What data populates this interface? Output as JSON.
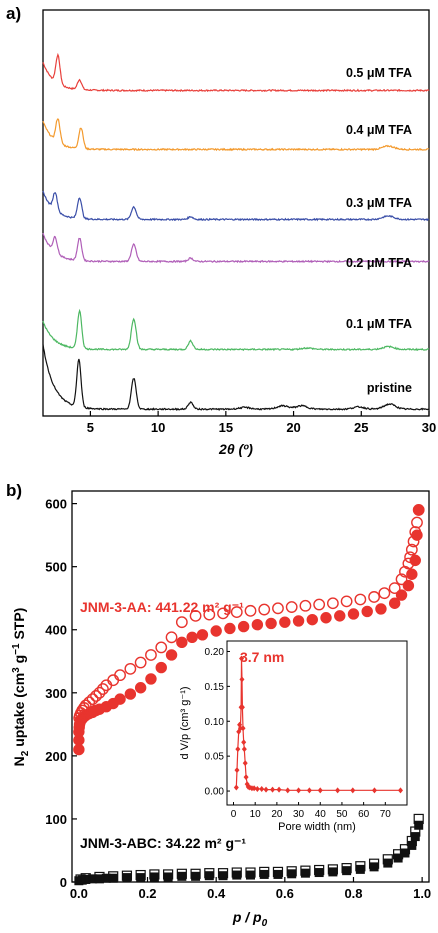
{
  "chart_data": [
    {
      "panel": "a)",
      "type": "line",
      "xlabel": "2θ (º)",
      "xlim": [
        1.5,
        30
      ],
      "x_ticks": [
        "5",
        "10",
        "15",
        "20",
        "25",
        "30"
      ],
      "series": [
        {
          "name": "0.5 μM TFA",
          "color": "#e8413c",
          "peaks": [
            [
              2.6,
              1.0
            ],
            [
              4.2,
              0.35
            ]
          ],
          "end_level": 0.02,
          "x": [],
          "y": []
        },
        {
          "name": "0.4 μM TFA",
          "color": "#f39a2e",
          "peaks": [
            [
              2.6,
              0.85
            ],
            [
              4.3,
              0.75
            ],
            [
              27.0,
              0.12
            ]
          ],
          "end_level": 0.02,
          "x": [],
          "y": []
        },
        {
          "name": "0.3 μM TFA",
          "color": "#3a4ea8",
          "peaks": [
            [
              2.4,
              0.65
            ],
            [
              4.2,
              0.75
            ],
            [
              8.2,
              0.45
            ],
            [
              12.4,
              0.1
            ],
            [
              27.0,
              0.12
            ]
          ],
          "end_level": 0.02,
          "x": [],
          "y": []
        },
        {
          "name": "0.2 μM TFA",
          "color": "#b05fb8",
          "peaks": [
            [
              2.4,
              0.55
            ],
            [
              4.2,
              0.8
            ],
            [
              8.2,
              0.6
            ],
            [
              12.4,
              0.12
            ]
          ],
          "end_level": 0.02,
          "x": [],
          "y": []
        },
        {
          "name": "0.1 μM TFA",
          "color": "#4db862",
          "peaks": [
            [
              4.2,
              1.35
            ],
            [
              8.2,
              1.1
            ],
            [
              12.4,
              0.3
            ],
            [
              21,
              0.05
            ],
            [
              27.0,
              0.1
            ]
          ],
          "end_level": 0.02,
          "x": [],
          "y": []
        },
        {
          "name": "pristine",
          "color": "#111111",
          "peaks": [
            [
              4.15,
              1.7
            ],
            [
              8.2,
              1.1
            ],
            [
              12.4,
              0.25
            ],
            [
              16.4,
              0.06
            ],
            [
              19.2,
              0.12
            ],
            [
              20.6,
              0.12
            ],
            [
              24.8,
              0.08
            ],
            [
              27.1,
              0.18
            ]
          ],
          "start_level": 2.3,
          "end_level": 0.03,
          "x": [],
          "y": []
        }
      ]
    },
    {
      "panel": "b)",
      "type": "scatter",
      "xlabel": "p / p0",
      "ylabel": "N2 uptake (cm3 g−1 STP)",
      "xlim": [
        -0.02,
        1.02
      ],
      "ylim": [
        0,
        620
      ],
      "x_ticks": [
        "0.0",
        "0.2",
        "0.4",
        "0.6",
        "0.8",
        "1.0"
      ],
      "y_ticks": [
        "0",
        "100",
        "200",
        "300",
        "400",
        "500",
        "600"
      ],
      "annotations": {
        "aa": "JNM-3-AA: 441.22 m² g⁻¹",
        "abc": "JNM-3-ABC: 34.22 m² g⁻¹"
      },
      "series": [
        {
          "name": "JNM-3-AA adsorption",
          "marker": "filled-circle",
          "color": "#e8342e",
          "x": [
            0.0,
            0.0,
            0.0,
            0.001,
            0.002,
            0.004,
            0.006,
            0.01,
            0.015,
            0.02,
            0.03,
            0.04,
            0.05,
            0.06,
            0.08,
            0.1,
            0.12,
            0.15,
            0.18,
            0.21,
            0.24,
            0.27,
            0.3,
            0.33,
            0.36,
            0.4,
            0.44,
            0.48,
            0.52,
            0.56,
            0.6,
            0.64,
            0.68,
            0.72,
            0.76,
            0.8,
            0.84,
            0.88,
            0.92,
            0.94,
            0.96,
            0.97,
            0.98,
            0.985,
            0.99
          ],
          "y": [
            210,
            225,
            238,
            245,
            250,
            254,
            257,
            259,
            262,
            264,
            267,
            269,
            272,
            274,
            278,
            283,
            290,
            298,
            308,
            322,
            340,
            360,
            380,
            388,
            392,
            398,
            402,
            405,
            408,
            410,
            412,
            414,
            416,
            419,
            422,
            425,
            429,
            433,
            442,
            455,
            470,
            488,
            510,
            550,
            590
          ]
        },
        {
          "name": "JNM-3-AA desorption",
          "marker": "open-circle",
          "color": "#e8342e",
          "x": [
            0.99,
            0.985,
            0.98,
            0.975,
            0.97,
            0.965,
            0.96,
            0.95,
            0.94,
            0.92,
            0.89,
            0.86,
            0.82,
            0.78,
            0.74,
            0.7,
            0.66,
            0.62,
            0.58,
            0.54,
            0.5,
            0.46,
            0.42,
            0.38,
            0.34,
            0.3,
            0.27,
            0.24,
            0.21,
            0.18,
            0.15,
            0.12,
            0.1,
            0.08,
            0.07,
            0.06,
            0.05,
            0.04,
            0.03,
            0.02,
            0.015,
            0.01,
            0.006,
            0.003,
            0.001
          ],
          "y": [
            590,
            570,
            555,
            540,
            527,
            515,
            505,
            492,
            480,
            466,
            458,
            452,
            448,
            445,
            442,
            440,
            438,
            436,
            434,
            432,
            430,
            428,
            426,
            424,
            422,
            412,
            388,
            372,
            360,
            348,
            338,
            328,
            320,
            312,
            306,
            300,
            295,
            290,
            285,
            280,
            276,
            272,
            268,
            264,
            260
          ]
        },
        {
          "name": "JNM-3-ABC adsorption",
          "marker": "filled-square",
          "color": "#111111",
          "x": [
            0.0,
            0.01,
            0.02,
            0.04,
            0.06,
            0.08,
            0.1,
            0.14,
            0.18,
            0.22,
            0.26,
            0.3,
            0.34,
            0.38,
            0.42,
            0.46,
            0.5,
            0.54,
            0.58,
            0.62,
            0.66,
            0.7,
            0.74,
            0.78,
            0.82,
            0.86,
            0.9,
            0.93,
            0.95,
            0.97,
            0.98,
            0.99
          ],
          "y": [
            2,
            3,
            4,
            5,
            5,
            6,
            6,
            7,
            7,
            8,
            8,
            9,
            9,
            10,
            10,
            11,
            11,
            12,
            12,
            13,
            14,
            15,
            16,
            18,
            20,
            24,
            30,
            38,
            46,
            58,
            72,
            90
          ]
        },
        {
          "name": "JNM-3-ABC desorption",
          "marker": "open-square",
          "color": "#111111",
          "x": [
            0.99,
            0.98,
            0.97,
            0.95,
            0.93,
            0.9,
            0.86,
            0.82,
            0.78,
            0.74,
            0.7,
            0.66,
            0.62,
            0.58,
            0.54,
            0.5,
            0.46,
            0.42,
            0.38,
            0.34,
            0.3,
            0.26,
            0.22,
            0.18,
            0.14,
            0.1,
            0.06,
            0.02,
            0.005
          ],
          "y": [
            100,
            80,
            65,
            52,
            44,
            36,
            29,
            25,
            22,
            20,
            19,
            18,
            17,
            16,
            16,
            15,
            15,
            14,
            14,
            13,
            13,
            12,
            12,
            11,
            10,
            9,
            8,
            6,
            4
          ]
        }
      ]
    },
    {
      "panel": "b-inset",
      "type": "line",
      "xlabel": "Pore width (nm)",
      "ylabel": "d V/p (cm³ g⁻¹)",
      "xlim": [
        -3,
        80
      ],
      "ylim": [
        -0.02,
        0.215
      ],
      "x_ticks": [
        "0",
        "10",
        "20",
        "30",
        "40",
        "50",
        "60",
        "70"
      ],
      "y_ticks": [
        "0.00",
        "0.05",
        "0.10",
        "0.15",
        "0.20"
      ],
      "annotation": "3.7 nm",
      "series": [
        {
          "name": "pore size distribution",
          "color": "#e8342e",
          "x": [
            1.3,
            1.6,
            2.0,
            2.4,
            2.8,
            3.2,
            3.5,
            3.7,
            3.9,
            4.1,
            4.4,
            4.7,
            5.0,
            5.4,
            5.8,
            6.3,
            6.8,
            7.5,
            8.5,
            9.5,
            11,
            13,
            15,
            18,
            21,
            25,
            30,
            35,
            40,
            48,
            55,
            65,
            77
          ],
          "y": [
            0.005,
            0.03,
            0.06,
            0.085,
            0.095,
            0.09,
            0.12,
            0.19,
            0.16,
            0.12,
            0.09,
            0.07,
            0.06,
            0.04,
            0.02,
            0.01,
            0.006,
            0.005,
            0.004,
            0.004,
            0.003,
            0.003,
            0.002,
            0.002,
            0.002,
            0.001,
            0.001,
            0.001,
            0.001,
            0.001,
            0.001,
            0.001,
            0.001
          ]
        }
      ]
    }
  ]
}
